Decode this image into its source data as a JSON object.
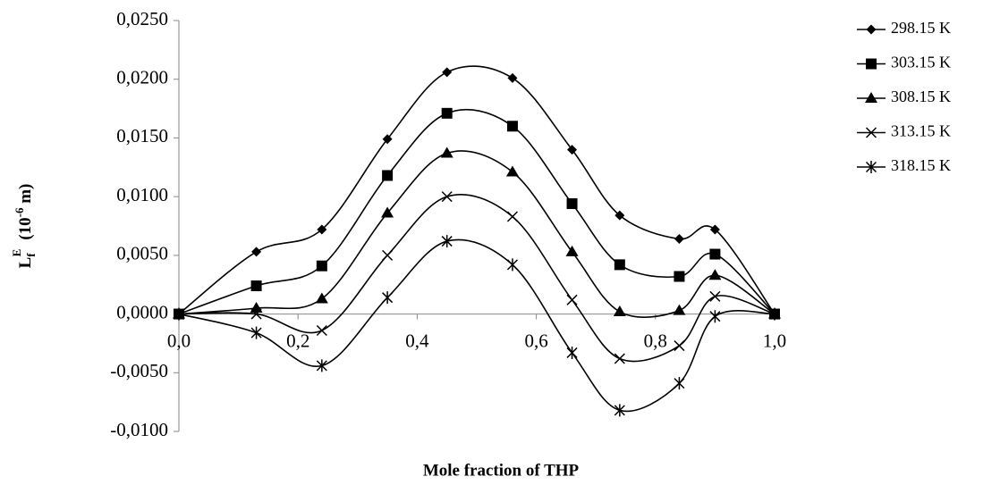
{
  "chart_data": {
    "type": "line",
    "xlabel": "Mole fraction of THP",
    "ylabel": {
      "main": "L",
      "sub": "f",
      "sup": "E",
      "unit_open": "(10",
      "unit_sup": "-6",
      "unit_close": " m)"
    },
    "x": [
      0,
      0.13,
      0.24,
      0.35,
      0.45,
      0.56,
      0.66,
      0.74,
      0.84,
      0.9,
      1.0
    ],
    "series": [
      {
        "name": "298.15 K",
        "color": "#000000",
        "marker": "diamond",
        "values": [
          0,
          0.0053,
          0.0072,
          0.0149,
          0.0206,
          0.0201,
          0.014,
          0.0084,
          0.0064,
          0.0072,
          0
        ]
      },
      {
        "name": "303.15 K",
        "color": "#000000",
        "marker": "square",
        "values": [
          0,
          0.0024,
          0.0041,
          0.0118,
          0.0171,
          0.016,
          0.0094,
          0.0042,
          0.0032,
          0.0051,
          0
        ]
      },
      {
        "name": "308.15 K",
        "color": "#000000",
        "marker": "triangle",
        "values": [
          0,
          0.0005,
          0.0013,
          0.0086,
          0.0137,
          0.0121,
          0.0053,
          0.0002,
          0.0003,
          0.0033,
          0
        ]
      },
      {
        "name": "313.15 K",
        "color": "#000000",
        "marker": "x",
        "values": [
          0,
          0.0,
          -0.0014,
          0.005,
          0.01,
          0.0083,
          0.0012,
          -0.0038,
          -0.0027,
          0.0015,
          0
        ]
      },
      {
        "name": "318.15 K",
        "color": "#000000",
        "marker": "asterisk",
        "values": [
          0,
          -0.0016,
          -0.0044,
          0.0014,
          0.0062,
          0.0042,
          -0.0033,
          -0.0082,
          -0.0059,
          -0.0002,
          0
        ]
      }
    ],
    "xlim": [
      0,
      1.0
    ],
    "xticks": [
      {
        "value": 0,
        "label": "0,0"
      },
      {
        "value": 0.2,
        "label": "0,2"
      },
      {
        "value": 0.4,
        "label": "0,4"
      },
      {
        "value": 0.6,
        "label": "0,6"
      },
      {
        "value": 0.8,
        "label": "0,8"
      },
      {
        "value": 1.0,
        "label": "1,0"
      }
    ],
    "ylim": [
      -0.01,
      0.025
    ],
    "yticks": [
      {
        "value": -0.01,
        "label": "-0,0100"
      },
      {
        "value": -0.005,
        "label": "-0,0050"
      },
      {
        "value": 0,
        "label": "0,0000"
      },
      {
        "value": 0.005,
        "label": "0,0050"
      },
      {
        "value": 0.01,
        "label": "0,0100"
      },
      {
        "value": 0.015,
        "label": "0,0150"
      },
      {
        "value": 0.02,
        "label": "0,0200"
      },
      {
        "value": 0.025,
        "label": "0,0250"
      }
    ],
    "grid": false,
    "smooth": true,
    "legend": "right"
  }
}
